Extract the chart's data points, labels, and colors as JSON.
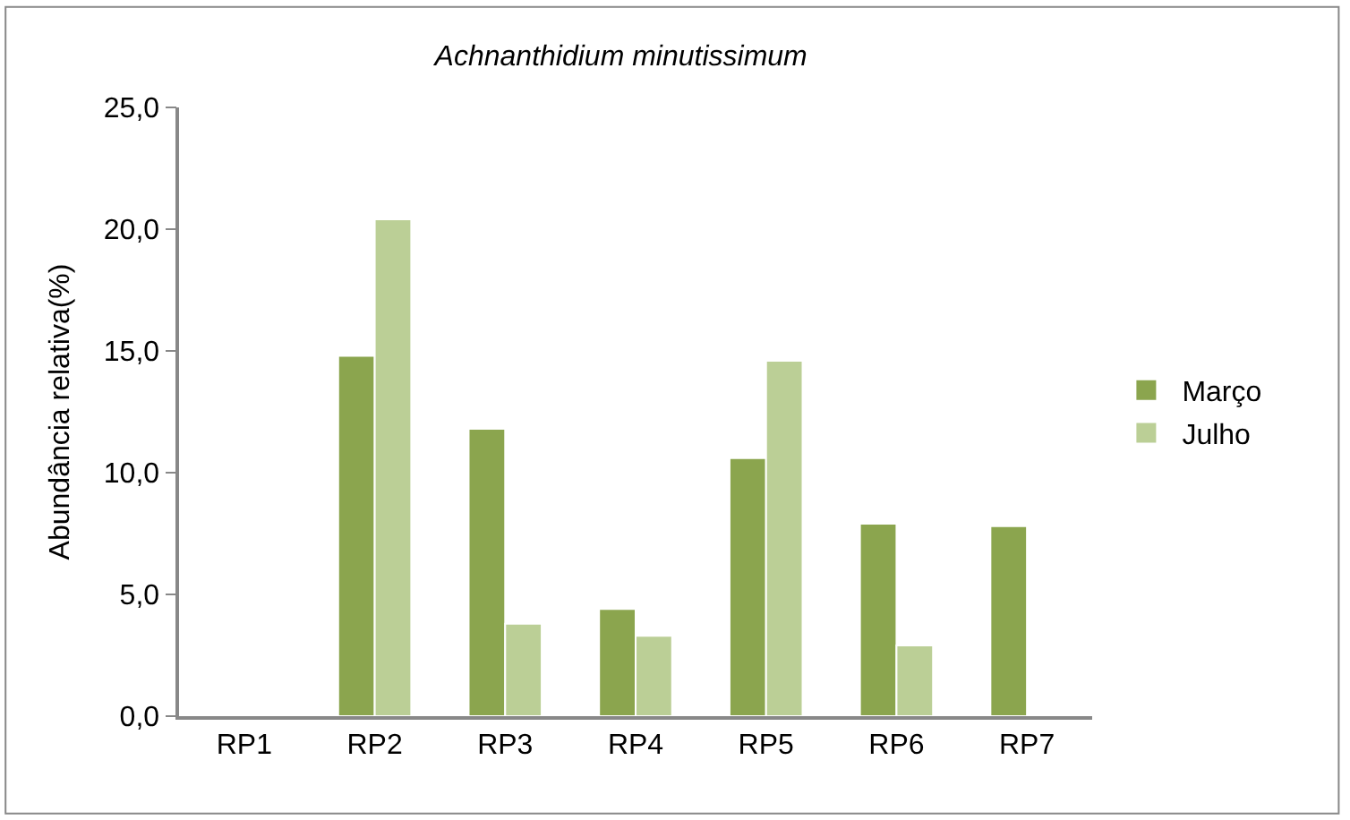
{
  "chart_data": {
    "type": "bar",
    "title": "Achnanthidium minutissimum",
    "ylabel": "Abundância relativa(%)",
    "categories": [
      "RP1",
      "RP2",
      "RP3",
      "RP4",
      "RP5",
      "RP6",
      "RP7"
    ],
    "series": [
      {
        "name": "Março",
        "color": "#8ba54e",
        "values": [
          null,
          14.8,
          11.8,
          4.4,
          10.6,
          7.9,
          7.8
        ]
      },
      {
        "name": "Julho",
        "color": "#bbcf96",
        "values": [
          null,
          20.4,
          3.8,
          3.3,
          14.6,
          2.9,
          null
        ]
      }
    ],
    "ylim": [
      0,
      25
    ],
    "yticks": [
      {
        "value": 0,
        "label": "0,0"
      },
      {
        "value": 5,
        "label": "5,0"
      },
      {
        "value": 10,
        "label": "10,0"
      },
      {
        "value": 15,
        "label": "15,0"
      },
      {
        "value": 20,
        "label": "20,0"
      },
      {
        "value": 25,
        "label": "25,0"
      }
    ],
    "legend": "right"
  }
}
